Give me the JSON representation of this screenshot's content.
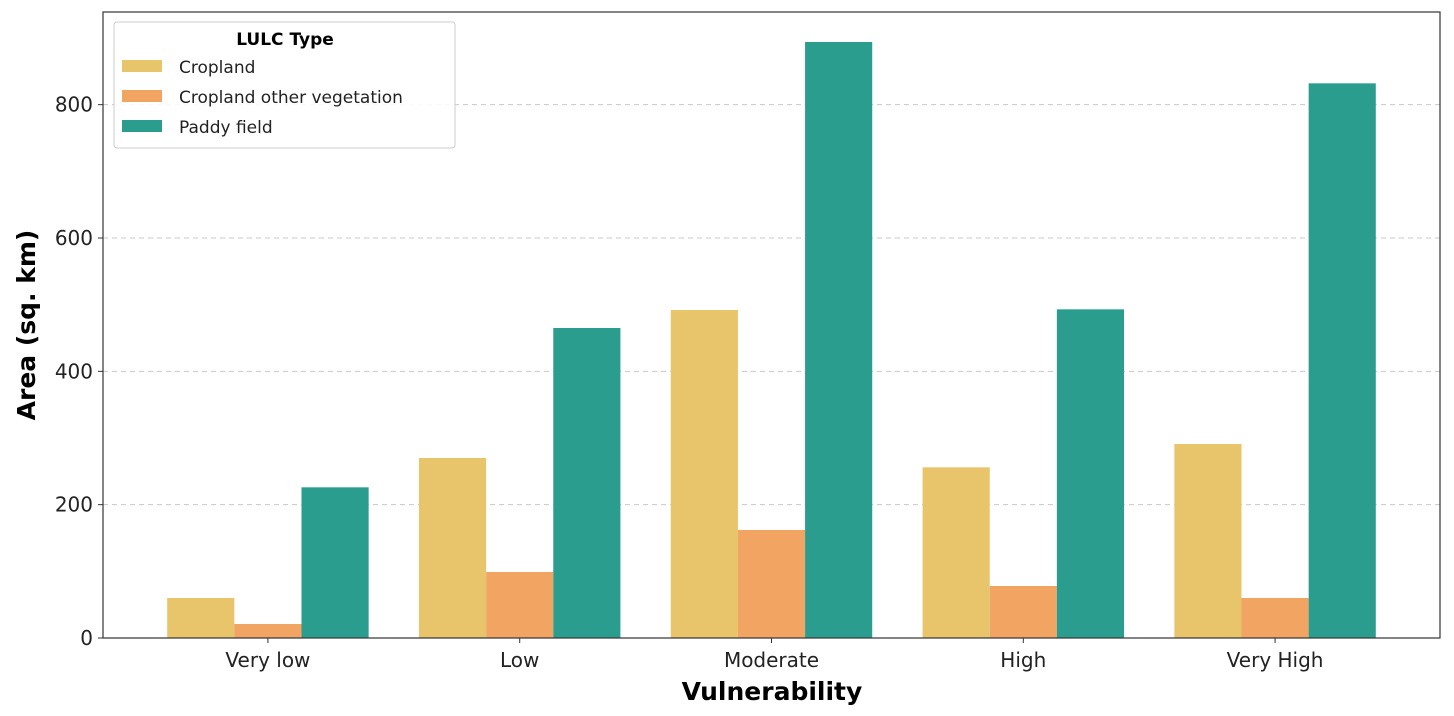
{
  "chart_data": {
    "type": "bar",
    "title": "",
    "xlabel": "Vulnerability",
    "ylabel": "Area (sq. km)",
    "categories": [
      "Very low",
      "Low",
      "Moderate",
      "High",
      "Very High"
    ],
    "series": [
      {
        "name": "Cropland",
        "color": "#E8C46B",
        "values": [
          60,
          270,
          492,
          256,
          291
        ]
      },
      {
        "name": "Cropland other vegetation",
        "color": "#F2A462",
        "values": [
          21,
          99,
          162,
          78,
          60
        ]
      },
      {
        "name": "Paddy field",
        "color": "#2A9D8F",
        "values": [
          226,
          465,
          894,
          493,
          832
        ]
      }
    ],
    "ylim": [
      0,
      939
    ],
    "yticks": [
      0,
      200,
      400,
      600,
      800
    ],
    "grid": "y, dashed",
    "legend": {
      "title": "LULC Type",
      "placement": "top-left"
    }
  }
}
